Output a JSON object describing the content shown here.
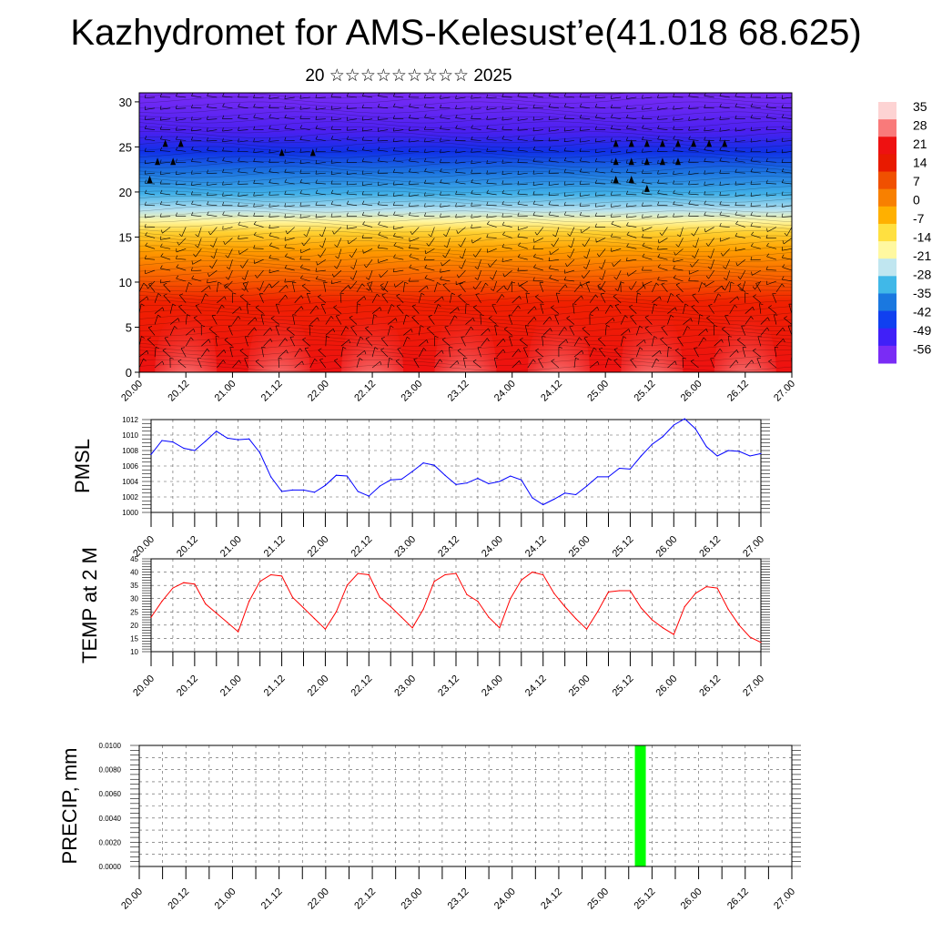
{
  "header": {
    "title": "Kazhydromet for AMS-Kelesust’e(41.018 68.625)",
    "subtitle": "20 ☆☆☆☆☆☆☆☆☆ 2025"
  },
  "time_ticks": [
    "20.00",
    "20.12",
    "21.00",
    "21.12",
    "22.00",
    "22.12",
    "23.00",
    "23.12",
    "24.00",
    "24.12",
    "25.00",
    "25.12",
    "26.00",
    "26.12",
    "27.00"
  ],
  "colors": {
    "pmsl_line": "#0000ff",
    "temp_line": "#ff0000",
    "precip_bar": "#00ff00",
    "wind_barb": "#000000"
  },
  "chart_data": [
    {
      "type": "heatmap",
      "name": "temperature-wind-cross-section",
      "x_ticks": [
        "20.00",
        "20.12",
        "21.00",
        "21.12",
        "22.00",
        "22.12",
        "23.00",
        "23.12",
        "24.00",
        "24.12",
        "25.00",
        "25.12",
        "26.00",
        "26.12",
        "27.00"
      ],
      "y_ticks": [
        "0",
        "5",
        "10",
        "15",
        "20",
        "25",
        "30"
      ],
      "ylim": [
        0,
        31
      ],
      "colorbar_labels": [
        "35",
        "28",
        "21",
        "14",
        "7",
        "0",
        "-7",
        "-14",
        "-21",
        "-28",
        "-35",
        "-42",
        "-49",
        "-56"
      ],
      "colorbar_colors": [
        "#fdd3d3",
        "#f97a7a",
        "#ee1111",
        "#e81a00",
        "#f05000",
        "#f88000",
        "#ffb000",
        "#ffe040",
        "#fff8a0",
        "#c0e6f0",
        "#40b8e8",
        "#1a78e0",
        "#1040f0",
        "#4020f8",
        "#7a2cf5"
      ],
      "overlay": "wind barbs"
    },
    {
      "type": "line",
      "ylabel": "PMSL",
      "ylim": [
        1000,
        1012
      ],
      "y_ticks": [
        "1000",
        "1002",
        "1004",
        "1006",
        "1008",
        "1010",
        "1012"
      ],
      "x": [
        "20.00",
        "20.03",
        "20.06",
        "20.09",
        "20.12",
        "20.15",
        "20.18",
        "20.21",
        "21.00",
        "21.03",
        "21.06",
        "21.09",
        "21.12",
        "21.15",
        "21.18",
        "21.21",
        "22.00",
        "22.03",
        "22.06",
        "22.09",
        "22.12",
        "22.15",
        "22.18",
        "22.21",
        "23.00",
        "23.03",
        "23.06",
        "23.09",
        "23.12",
        "23.15",
        "23.18",
        "23.21",
        "24.00",
        "24.03",
        "24.06",
        "24.09",
        "24.12",
        "24.15",
        "24.18",
        "24.21",
        "25.00",
        "25.03",
        "25.06",
        "25.09",
        "25.12",
        "25.15",
        "25.18",
        "25.21",
        "26.00",
        "26.03",
        "26.06",
        "26.09",
        "26.12",
        "26.15",
        "26.18",
        "26.21",
        "27.00"
      ],
      "series": [
        {
          "values": [
            1007.5,
            1009.3,
            1009.1,
            1008.3,
            1008.0,
            1009.2,
            1010.5,
            1009.6,
            1009.4,
            1009.5,
            1007.7,
            1004.6,
            1002.7,
            1002.9,
            1002.9,
            1002.6,
            1003.5,
            1004.8,
            1004.7,
            1002.7,
            1002.1,
            1003.4,
            1004.2,
            1004.3,
            1005.3,
            1006.4,
            1006.1,
            1004.8,
            1003.6,
            1003.8,
            1004.4,
            1003.7,
            1004.0,
            1004.7,
            1004.2,
            1001.9,
            1001.0,
            1001.7,
            1002.5,
            1002.3,
            1003.4,
            1004.6,
            1004.6,
            1005.7,
            1005.6,
            1007.3,
            1008.8,
            1009.8,
            1011.3,
            1012.1,
            1010.8,
            1008.5,
            1007.3,
            1008.0,
            1007.9,
            1007.3,
            1007.6
          ]
        }
      ]
    },
    {
      "type": "line",
      "ylabel": "TEMP at 2 M",
      "ylim": [
        10,
        45
      ],
      "y_ticks": [
        "10",
        "15",
        "20",
        "25",
        "30",
        "35",
        "40",
        "45"
      ],
      "x": [
        "20.00",
        "20.03",
        "20.06",
        "20.09",
        "20.12",
        "20.15",
        "20.18",
        "20.21",
        "21.00",
        "21.03",
        "21.06",
        "21.09",
        "21.12",
        "21.15",
        "21.18",
        "21.21",
        "22.00",
        "22.03",
        "22.06",
        "22.09",
        "22.12",
        "22.15",
        "22.18",
        "22.21",
        "23.00",
        "23.03",
        "23.06",
        "23.09",
        "23.12",
        "23.15",
        "23.18",
        "23.21",
        "24.00",
        "24.03",
        "24.06",
        "24.09",
        "24.12",
        "24.15",
        "24.18",
        "24.21",
        "25.00",
        "25.03",
        "25.06",
        "25.09",
        "25.12",
        "25.15",
        "25.18",
        "25.21",
        "26.00",
        "26.03",
        "26.06",
        "26.09",
        "26.12",
        "26.15",
        "26.18",
        "26.21",
        "27.00"
      ],
      "series": [
        {
          "values": [
            23,
            29,
            34,
            36,
            35.5,
            28,
            24.5,
            21,
            17.5,
            29,
            36.5,
            39,
            38.5,
            30.5,
            26.5,
            22.5,
            18.5,
            25,
            35,
            39.5,
            39,
            30.5,
            27,
            23,
            19,
            26,
            36.5,
            39,
            39.5,
            31.5,
            29,
            23,
            19,
            30,
            37,
            40,
            39,
            32,
            27,
            22.5,
            18.5,
            25,
            32.5,
            33,
            33,
            26.5,
            22,
            19,
            16.5,
            27,
            32,
            34.5,
            34,
            26,
            20,
            15.5,
            13.5
          ]
        }
      ]
    },
    {
      "type": "bar",
      "ylabel": "PRECIP, mm",
      "ylim": [
        0,
        0.01
      ],
      "y_ticks": [
        "0.0000",
        "0.0020",
        "0.0040",
        "0.0060",
        "0.0080",
        "0.0100"
      ],
      "x": [
        "25.09"
      ],
      "values": [
        0.01
      ]
    }
  ]
}
